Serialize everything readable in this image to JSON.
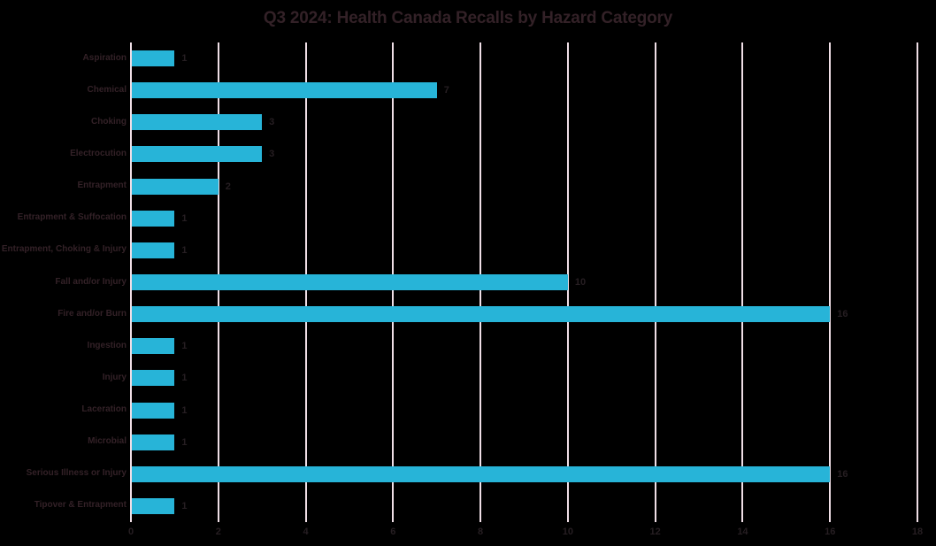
{
  "chart": {
    "title": "Q3 2024: Health Canada Recalls by Hazard Category"
  },
  "chart_data": {
    "type": "bar",
    "orientation": "horizontal",
    "title": "Q3 2024: Health Canada Recalls by Hazard Category",
    "categories": [
      "Aspiration",
      "Chemical",
      "Choking",
      "Electrocution",
      "Entrapment",
      "Entrapment & Suffocation",
      "Entrapment, Choking & Injury",
      "Fall and/or Injury",
      "Fire and/or Burn",
      "Ingestion",
      "Injury",
      "Laceration",
      "Microbial",
      "Serious Illness or Injury",
      "Tipover & Entrapment"
    ],
    "values": [
      1,
      7,
      3,
      3,
      2,
      1,
      1,
      10,
      16,
      1,
      1,
      1,
      1,
      16,
      1
    ],
    "data_labels_shown": true,
    "xlabel": "",
    "ylabel": "",
    "xlim": [
      0,
      18
    ],
    "xticks": [
      0,
      2,
      4,
      6,
      8,
      10,
      12,
      14,
      16,
      18
    ],
    "grid": "vertical-only",
    "legend": "none",
    "colors": {
      "background": "#000000",
      "bar": "#27B4D8",
      "gridline": "#EFDEE6",
      "title_text": "#332127",
      "category_text": "#332127",
      "value_text": "#261E22",
      "tick_text": "#261E22"
    }
  }
}
